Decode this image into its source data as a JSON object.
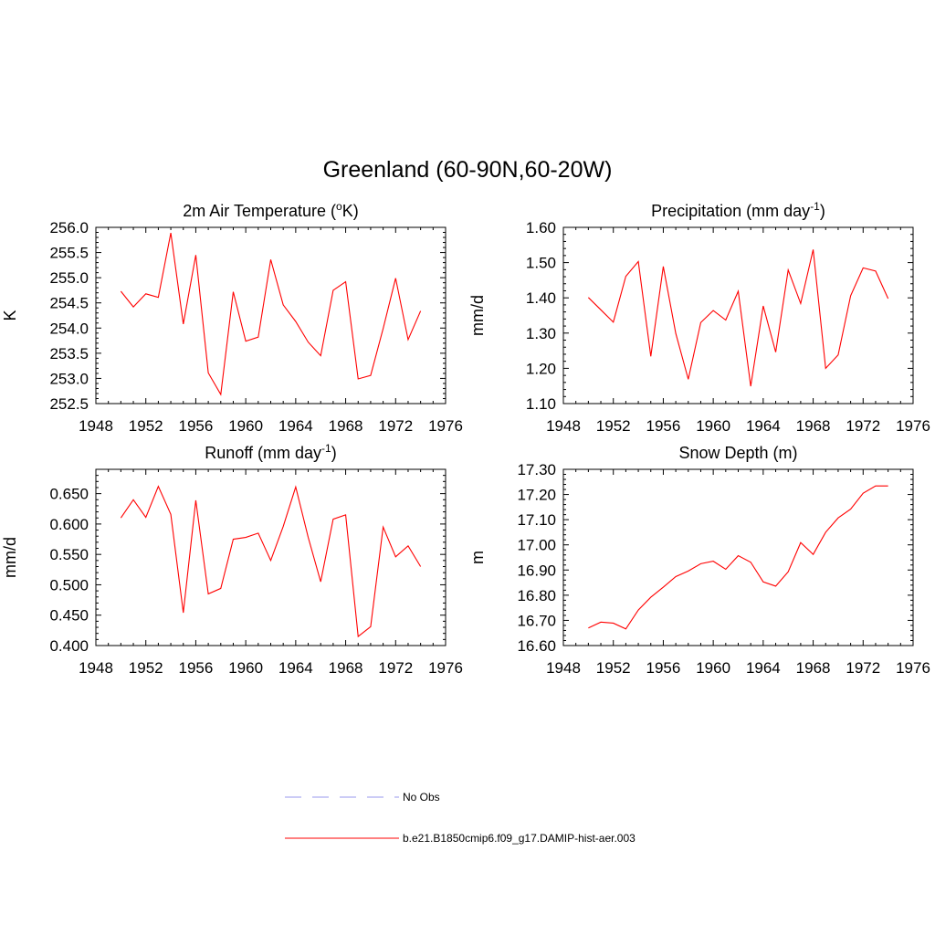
{
  "title": "Greenland (60-90N,60-20W)",
  "colors": {
    "model": "#ff0000",
    "obs": "#9999ee"
  },
  "legend": {
    "items": [
      {
        "label": "No Obs",
        "style": "dashed",
        "color": "#9999ee"
      },
      {
        "label": "b.e21.B1850cmip6.f09_g17.DAMIP-hist-aer.003",
        "style": "solid",
        "color": "#ff0000"
      }
    ]
  },
  "chart_data": [
    {
      "type": "line",
      "title": "2m Air Temperature (°K)",
      "title_parts": {
        "pre": "2m Air Temperature (",
        "sup": "o",
        "post": "K)"
      },
      "xlabel": "",
      "ylabel": "K",
      "xlim": [
        1948,
        1976
      ],
      "ylim": [
        252.5,
        256.0
      ],
      "xticks": [
        1948,
        1952,
        1956,
        1960,
        1964,
        1968,
        1972,
        1976
      ],
      "yticks": [
        "252.5",
        "253.0",
        "253.5",
        "254.0",
        "254.5",
        "255.0",
        "255.5",
        "256.0"
      ],
      "ytick_values": [
        252.5,
        253.0,
        253.5,
        254.0,
        254.5,
        255.0,
        255.5,
        256.0
      ],
      "yminor_step": 0.1,
      "series": [
        {
          "name": "b.e21.B1850cmip6.f09_g17.DAMIP-hist-aer.003",
          "x": [
            1950,
            1951,
            1952,
            1953,
            1954,
            1955,
            1956,
            1957,
            1958,
            1959,
            1960,
            1961,
            1962,
            1963,
            1964,
            1965,
            1966,
            1967,
            1968,
            1969,
            1970,
            1971,
            1972,
            1973,
            1974
          ],
          "y": [
            254.73,
            254.42,
            254.68,
            254.61,
            255.89,
            254.08,
            255.45,
            253.11,
            252.68,
            254.72,
            253.74,
            253.82,
            255.36,
            254.46,
            254.13,
            253.72,
            253.45,
            254.75,
            254.92,
            252.99,
            253.06,
            253.99,
            254.99,
            253.77,
            254.34
          ]
        }
      ]
    },
    {
      "type": "line",
      "title": "Precipitation (mm day-1)",
      "title_parts": {
        "pre": "Precipitation (mm day",
        "sup": "-1",
        "post": ")"
      },
      "xlabel": "",
      "ylabel": "mm/d",
      "xlim": [
        1948,
        1976
      ],
      "ylim": [
        1.1,
        1.6
      ],
      "xticks": [
        1948,
        1952,
        1956,
        1960,
        1964,
        1968,
        1972,
        1976
      ],
      "yticks": [
        "1.10",
        "1.20",
        "1.30",
        "1.40",
        "1.50",
        "1.60"
      ],
      "ytick_values": [
        1.1,
        1.2,
        1.3,
        1.4,
        1.5,
        1.6
      ],
      "yminor_step": 0.02,
      "series": [
        {
          "name": "b.e21.B1850cmip6.f09_g17.DAMIP-hist-aer.003",
          "x": [
            1950,
            1951,
            1952,
            1953,
            1954,
            1955,
            1956,
            1957,
            1958,
            1959,
            1960,
            1961,
            1962,
            1963,
            1964,
            1965,
            1966,
            1967,
            1968,
            1969,
            1970,
            1971,
            1972,
            1973,
            1974
          ],
          "y": [
            1.401,
            1.366,
            1.331,
            1.461,
            1.503,
            1.234,
            1.489,
            1.299,
            1.169,
            1.33,
            1.364,
            1.337,
            1.419,
            1.149,
            1.377,
            1.246,
            1.479,
            1.384,
            1.537,
            1.2,
            1.238,
            1.406,
            1.485,
            1.476,
            1.398
          ]
        }
      ]
    },
    {
      "type": "line",
      "title": "Runoff (mm day-1)",
      "title_parts": {
        "pre": "Runoff (mm day",
        "sup": "-1",
        "post": ")"
      },
      "xlabel": "",
      "ylabel": "mm/d",
      "xlim": [
        1948,
        1976
      ],
      "ylim": [
        0.4,
        0.69
      ],
      "xticks": [
        1948,
        1952,
        1956,
        1960,
        1964,
        1968,
        1972,
        1976
      ],
      "yticks": [
        "0.400",
        "0.450",
        "0.500",
        "0.550",
        "0.600",
        "0.650"
      ],
      "ytick_values": [
        0.4,
        0.45,
        0.5,
        0.55,
        0.6,
        0.65
      ],
      "yminor_step": 0.01,
      "series": [
        {
          "name": "b.e21.B1850cmip6.f09_g17.DAMIP-hist-aer.003",
          "x": [
            1950,
            1951,
            1952,
            1953,
            1954,
            1955,
            1956,
            1957,
            1958,
            1959,
            1960,
            1961,
            1962,
            1963,
            1964,
            1965,
            1966,
            1967,
            1968,
            1969,
            1970,
            1971,
            1972,
            1973,
            1974
          ],
          "y": [
            0.61,
            0.64,
            0.611,
            0.662,
            0.616,
            0.454,
            0.639,
            0.485,
            0.494,
            0.575,
            0.578,
            0.585,
            0.54,
            0.596,
            0.661,
            0.578,
            0.505,
            0.608,
            0.615,
            0.415,
            0.431,
            0.595,
            0.546,
            0.564,
            0.53
          ]
        }
      ]
    },
    {
      "type": "line",
      "title": "Snow Depth (m)",
      "title_parts": {
        "pre": "Snow Depth (m)",
        "sup": "",
        "post": ""
      },
      "xlabel": "",
      "ylabel": "m",
      "xlim": [
        1948,
        1976
      ],
      "ylim": [
        16.6,
        17.3
      ],
      "xticks": [
        1948,
        1952,
        1956,
        1960,
        1964,
        1968,
        1972,
        1976
      ],
      "yticks": [
        "16.60",
        "16.70",
        "16.80",
        "16.90",
        "17.00",
        "17.10",
        "17.20",
        "17.30"
      ],
      "ytick_values": [
        16.6,
        16.7,
        16.8,
        16.9,
        17.0,
        17.1,
        17.2,
        17.3
      ],
      "yminor_step": 0.02,
      "series": [
        {
          "name": "b.e21.B1850cmip6.f09_g17.DAMIP-hist-aer.003",
          "x": [
            1950,
            1951,
            1952,
            1953,
            1954,
            1955,
            1956,
            1957,
            1958,
            1959,
            1960,
            1961,
            1962,
            1963,
            1964,
            1965,
            1966,
            1967,
            1968,
            1969,
            1970,
            1971,
            1972,
            1973,
            1974
          ],
          "y": [
            16.67,
            16.693,
            16.689,
            16.666,
            16.741,
            16.792,
            16.832,
            16.874,
            16.896,
            16.925,
            16.935,
            16.903,
            16.957,
            16.931,
            16.853,
            16.836,
            16.893,
            17.009,
            16.962,
            17.05,
            17.107,
            17.142,
            17.205,
            17.234,
            17.234
          ]
        }
      ]
    }
  ]
}
